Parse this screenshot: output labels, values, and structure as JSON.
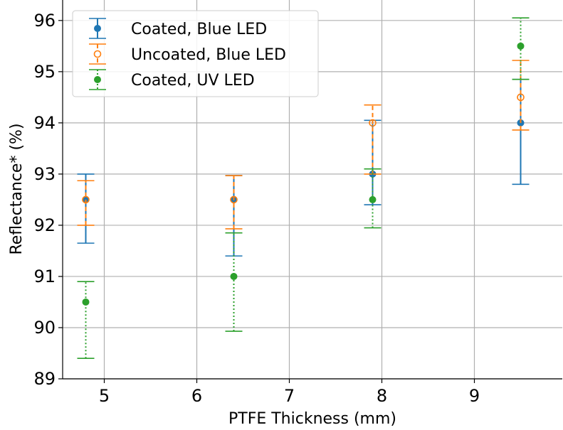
{
  "chart_data": {
    "type": "scatter",
    "xlabel": "PTFE Thickness (mm)",
    "ylabel": "Reflectance* (%)",
    "xlim": [
      4.55,
      9.95
    ],
    "ylim": [
      89,
      96.4
    ],
    "xticks": [
      5,
      6,
      7,
      8,
      9
    ],
    "yticks": [
      89,
      90,
      91,
      92,
      93,
      94,
      95,
      96
    ],
    "grid": true,
    "legend_position": "top-left",
    "series": [
      {
        "name": "Coated, Blue LED",
        "color": "#1f77b4",
        "marker": "filled-circle",
        "errorbar_style": "solid",
        "points": [
          {
            "x": 4.8,
            "y": 92.5,
            "yerr_low": 91.65,
            "yerr_high": 93.0
          },
          {
            "x": 6.4,
            "y": 92.5,
            "yerr_low": 91.4,
            "yerr_high": 92.97
          },
          {
            "x": 7.9,
            "y": 93.0,
            "yerr_low": 92.4,
            "yerr_high": 94.05
          },
          {
            "x": 9.5,
            "y": 94.0,
            "yerr_low": 92.8,
            "yerr_high": 94.85
          }
        ]
      },
      {
        "name": "Uncoated, Blue LED",
        "color": "#ff7f0e",
        "marker": "open-circle",
        "errorbar_style": "dashed",
        "points": [
          {
            "x": 4.8,
            "y": 92.5,
            "yerr_low": 92.0,
            "yerr_high": 92.87
          },
          {
            "x": 6.4,
            "y": 92.5,
            "yerr_low": 91.93,
            "yerr_high": 92.97
          },
          {
            "x": 7.9,
            "y": 94.0,
            "yerr_low": 93.0,
            "yerr_high": 94.35
          },
          {
            "x": 9.5,
            "y": 94.5,
            "yerr_low": 93.86,
            "yerr_high": 95.22
          }
        ]
      },
      {
        "name": "Coated, UV LED",
        "color": "#2ca02c",
        "marker": "filled-circle",
        "errorbar_style": "dotted",
        "points": [
          {
            "x": 4.8,
            "y": 90.5,
            "yerr_low": 89.4,
            "yerr_high": 90.9
          },
          {
            "x": 6.4,
            "y": 91.0,
            "yerr_low": 89.93,
            "yerr_high": 91.85
          },
          {
            "x": 7.9,
            "y": 92.5,
            "yerr_low": 91.95,
            "yerr_high": 93.1
          },
          {
            "x": 9.5,
            "y": 95.5,
            "yerr_low": 94.85,
            "yerr_high": 96.05
          }
        ]
      }
    ]
  }
}
